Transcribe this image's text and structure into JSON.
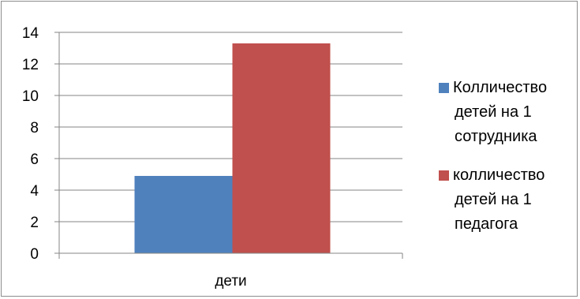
{
  "chart_data": {
    "type": "bar",
    "title": "",
    "xlabel": "",
    "ylabel": "",
    "categories": [
      "дети"
    ],
    "ylim": [
      0,
      14
    ],
    "yticks": [
      0,
      2,
      4,
      6,
      8,
      10,
      12,
      14
    ],
    "grid": true,
    "legend_position": "right",
    "series": [
      {
        "name": "Колличество детей на 1 сотрудника",
        "name_lines": [
          "Колличество",
          "детей на 1",
          "сотрудника"
        ],
        "values": [
          4.9
        ],
        "color": "#4f81bd"
      },
      {
        "name": "колличество детей на 1 педагога",
        "name_lines": [
          "колличество",
          "детей на 1",
          "педагога"
        ],
        "values": [
          13.3
        ],
        "color": "#c0504d"
      }
    ]
  }
}
